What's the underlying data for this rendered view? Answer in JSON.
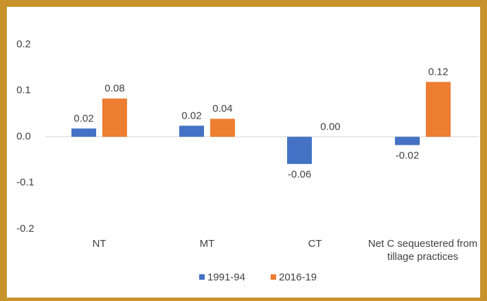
{
  "chart_data": {
    "type": "bar",
    "categories": [
      "NT",
      "MT",
      "CT",
      "Net C sequestered from tillage practices"
    ],
    "series": [
      {
        "name": "1991-94",
        "color": "#4472c4",
        "values": [
          0.018,
          0.024,
          -0.059,
          -0.018
        ],
        "value_labels": [
          "0.02",
          "0.02",
          "-0.06",
          "-0.02"
        ]
      },
      {
        "name": "2016-19",
        "color": "#ed7d31",
        "values": [
          0.083,
          0.039,
          0,
          0.119
        ],
        "value_labels": [
          "0.08",
          "0.04",
          "0.00",
          "0.12"
        ]
      }
    ],
    "ylim": [
      -0.2,
      0.2
    ],
    "yticks": [
      0.2,
      0.1,
      {
        "value": 0,
        "label": "0.0"
      },
      -0.1,
      -0.2
    ],
    "grid": false,
    "legend": "bottom"
  }
}
